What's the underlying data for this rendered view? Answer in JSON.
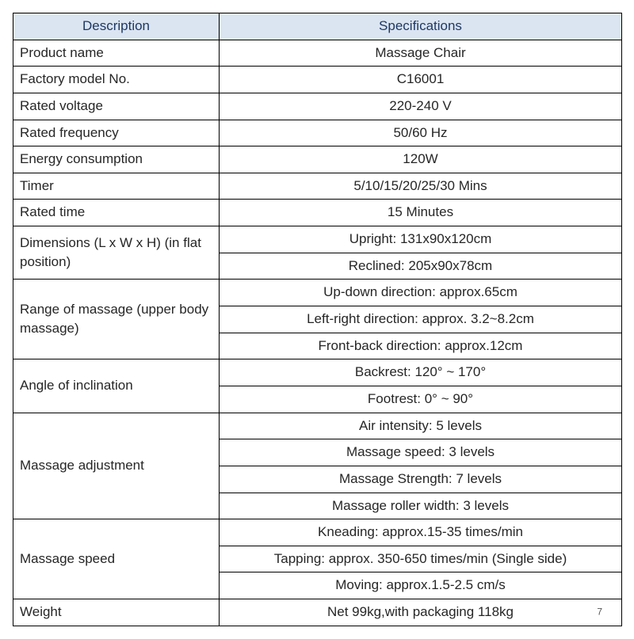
{
  "table": {
    "header_bg": "#dbe5f1",
    "header_color": "#1f3864",
    "body_color": "#262626",
    "columns": {
      "description": "Description",
      "specifications": "Specifications"
    },
    "rows": [
      {
        "desc": "Product name",
        "specs": [
          "Massage Chair"
        ]
      },
      {
        "desc": "Factory model No.",
        "specs": [
          "C16001"
        ]
      },
      {
        "desc": "Rated voltage",
        "specs": [
          "220-240 V"
        ]
      },
      {
        "desc": "Rated frequency",
        "specs": [
          "50/60 Hz"
        ]
      },
      {
        "desc": "Energy consumption",
        "specs": [
          "120W"
        ]
      },
      {
        "desc": "Timer",
        "specs": [
          "5/10/15/20/25/30 Mins"
        ]
      },
      {
        "desc": "Rated time",
        "specs": [
          "15 Minutes"
        ]
      },
      {
        "desc": "Dimensions (L x W x H) (in flat position)",
        "specs": [
          "Upright: 131x90x120cm",
          "Reclined: 205x90x78cm"
        ]
      },
      {
        "desc": "Range of massage (upper body massage)",
        "specs": [
          "Up-down direction: approx.65cm",
          "Left-right direction: approx. 3.2~8.2cm",
          "Front-back direction: approx.12cm"
        ]
      },
      {
        "desc": "Angle of inclination",
        "specs": [
          "Backrest: 120°  ~ 170°",
          "Footrest: 0°  ~ 90°"
        ]
      },
      {
        "desc": "Massage adjustment",
        "specs": [
          "Air intensity: 5 levels",
          "Massage speed: 3 levels",
          "Massage Strength: 7 levels",
          "Massage roller width: 3 levels"
        ]
      },
      {
        "desc": "Massage speed",
        "specs": [
          "Kneading: approx.15-35 times/min",
          "Tapping: approx. 350-650 times/min (Single side)",
          "Moving: approx.1.5-2.5 cm/s"
        ]
      },
      {
        "desc": "Weight",
        "specs": [
          "Net 99kg,with packaging 118kg"
        ]
      }
    ],
    "page_number": "7"
  }
}
